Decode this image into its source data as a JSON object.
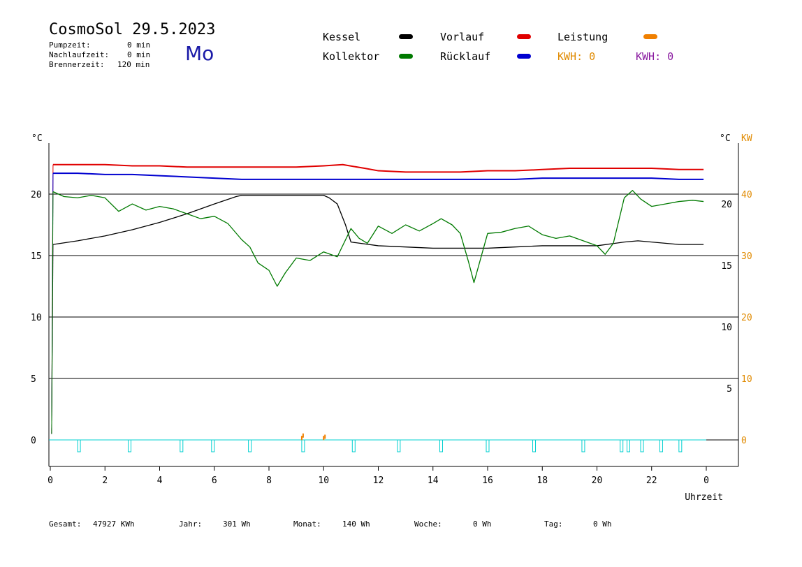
{
  "header": {
    "title": "CosmoSol 29.5.2023",
    "weekday": "Mo",
    "pump_label": "Pumpzeit:",
    "pump_value": "0 min",
    "afterrun_label": "Nachlaufzeit:",
    "afterrun_value": "0 min",
    "burner_label": "Brennerzeit:",
    "burner_value": "120 min"
  },
  "legend": {
    "kessel": "Kessel",
    "kollektor": "Kollektor",
    "vorlauf": "Vorlauf",
    "ruecklauf": "Rücklauf",
    "leistung": "Leistung",
    "kwh_orange": "KWH: 0",
    "kwh_purple": "KWH: 0"
  },
  "colors": {
    "kessel": "#000000",
    "kollektor": "#007a00",
    "vorlauf": "#e00000",
    "ruecklauf": "#0000d0",
    "leistung": "#f08000",
    "pump": "#00d0d0",
    "purple": "#8a1aa0",
    "orange_text": "#e08a00"
  },
  "footer": {
    "gesamt_label": "Gesamt:",
    "gesamt_value": "47927 KWh",
    "jahr_label": "Jahr:",
    "jahr_value": "301 Wh",
    "monat_label": "Monat:",
    "monat_value": "140 Wh",
    "woche_label": "Woche:",
    "woche_value": "0 Wh",
    "tag_label": "Tag:",
    "tag_value": "0 Wh"
  },
  "chart_data": {
    "type": "line",
    "xlabel": "Uhrzeit",
    "left_unit": "°C",
    "right_unit_temp": "°C",
    "right_unit_power": "KW",
    "xlim": [
      0,
      24
    ],
    "ylim": [
      -2,
      23
    ],
    "x_ticks": [
      "0",
      "2",
      "4",
      "6",
      "8",
      "10",
      "12",
      "14",
      "16",
      "18",
      "20",
      "22",
      "0"
    ],
    "y_left_ticks": [
      0,
      5,
      10,
      15,
      20
    ],
    "y_right_ticks": [
      "5",
      "10",
      "15",
      "20"
    ],
    "power_ticks": [
      "0",
      "10",
      "20",
      "30",
      "40"
    ],
    "grid_y": [
      0,
      5,
      10,
      15,
      20
    ],
    "series": [
      {
        "name": "Vorlauf",
        "x": [
          0.1,
          1,
          2,
          3,
          4,
          5,
          6,
          7,
          8,
          9,
          10,
          10.7,
          11.5,
          12,
          13,
          14,
          15,
          16,
          17,
          18,
          19,
          20,
          21,
          22,
          23,
          23.9
        ],
        "y": [
          22.4,
          22.4,
          22.4,
          22.3,
          22.3,
          22.2,
          22.2,
          22.2,
          22.2,
          22.2,
          22.3,
          22.4,
          22.1,
          21.9,
          21.8,
          21.8,
          21.8,
          21.9,
          21.9,
          22.0,
          22.1,
          22.1,
          22.1,
          22.1,
          22.0,
          22.0
        ]
      },
      {
        "name": "Rücklauf",
        "x": [
          0.1,
          1,
          2,
          3,
          4,
          5,
          6,
          7,
          8,
          9,
          10,
          11,
          12,
          13,
          14,
          15,
          16,
          17,
          18,
          19,
          20,
          21,
          22,
          23,
          23.9
        ],
        "y": [
          21.7,
          21.7,
          21.6,
          21.6,
          21.5,
          21.4,
          21.3,
          21.2,
          21.2,
          21.2,
          21.2,
          21.2,
          21.2,
          21.2,
          21.2,
          21.2,
          21.2,
          21.2,
          21.3,
          21.3,
          21.3,
          21.3,
          21.3,
          21.2,
          21.2
        ]
      },
      {
        "name": "Kessel",
        "x": [
          0.1,
          1,
          2,
          3,
          4,
          5,
          6,
          6.8,
          7,
          8,
          9,
          9.5,
          10,
          10.2,
          10.5,
          10.8,
          11,
          12,
          13,
          14,
          15,
          16,
          17,
          18,
          19,
          20,
          21,
          21.5,
          22,
          23,
          23.9
        ],
        "y": [
          15.9,
          16.2,
          16.6,
          17.1,
          17.7,
          18.4,
          19.2,
          19.8,
          19.9,
          19.9,
          19.9,
          19.9,
          19.9,
          19.7,
          19.2,
          17.5,
          16.1,
          15.8,
          15.7,
          15.6,
          15.6,
          15.6,
          15.7,
          15.8,
          15.8,
          15.8,
          16.1,
          16.2,
          16.1,
          15.9,
          15.9
        ]
      },
      {
        "name": "Kollektor",
        "x": [
          0.1,
          0.5,
          1,
          1.5,
          2,
          2.5,
          3,
          3.5,
          4,
          4.5,
          5,
          5.5,
          6,
          6.5,
          7,
          7.3,
          7.6,
          8,
          8.3,
          8.6,
          9,
          9.5,
          10,
          10.5,
          11,
          11.3,
          11.6,
          12,
          12.5,
          13,
          13.5,
          14,
          14.3,
          14.7,
          15,
          15.3,
          15.5,
          15.8,
          16,
          16.5,
          17,
          17.5,
          18,
          18.5,
          19,
          19.5,
          20,
          20.3,
          20.6,
          21,
          21.3,
          21.6,
          22,
          22.5,
          23,
          23.5,
          23.9
        ],
        "y": [
          20.2,
          19.8,
          19.7,
          19.9,
          19.7,
          18.6,
          19.2,
          18.7,
          19.0,
          18.8,
          18.4,
          18.0,
          18.2,
          17.6,
          16.3,
          15.7,
          14.4,
          13.8,
          12.5,
          13.6,
          14.8,
          14.6,
          15.3,
          14.9,
          17.2,
          16.4,
          16.0,
          17.4,
          16.8,
          17.5,
          17.0,
          17.6,
          18.0,
          17.5,
          16.8,
          14.5,
          12.8,
          15.2,
          16.8,
          16.9,
          17.2,
          17.4,
          16.7,
          16.4,
          16.6,
          16.2,
          15.8,
          15.1,
          16.0,
          19.7,
          20.3,
          19.6,
          19.0,
          19.2,
          19.4,
          19.5,
          19.4
        ]
      },
      {
        "name": "Leistung",
        "x": [
          9.2,
          9.25,
          10.0,
          10.05
        ],
        "y": [
          0.1,
          0.3,
          0.1,
          0.2
        ]
      }
    ],
    "pump_pulses_x": [
      1.05,
      2.9,
      4.8,
      5.95,
      7.3,
      9.25,
      11.1,
      12.75,
      14.3,
      16.0,
      17.7,
      19.5,
      20.9,
      21.15,
      21.65,
      22.35,
      23.05
    ]
  }
}
